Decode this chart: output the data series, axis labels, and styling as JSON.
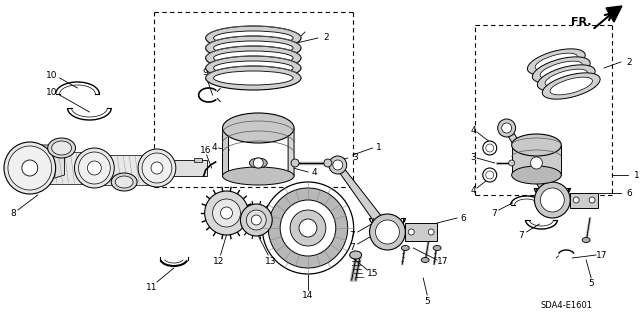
{
  "bg_color": "#ffffff",
  "fig_width": 6.4,
  "fig_height": 3.2,
  "dpi": 100,
  "model_code": "SDA4-E1601",
  "font_size": 6.5,
  "lw": 0.7
}
